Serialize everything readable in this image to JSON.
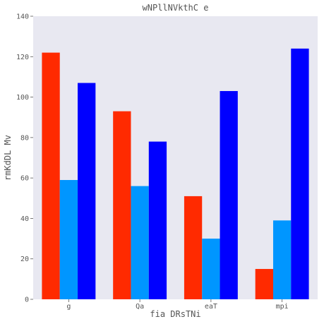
{
  "chart_data": {
    "type": "bar",
    "title": "wNPllNVkthC e",
    "xlabel": "fia DRsTNi",
    "ylabel": "rmKdDL Mv",
    "categories": [
      "g",
      "Qa",
      "eaT",
      "mpi"
    ],
    "series": [
      {
        "values": [
          122,
          93,
          51,
          15
        ],
        "color": "#ff2a00"
      },
      {
        "values": [
          59,
          56,
          30,
          39
        ],
        "color": "#0096ff"
      },
      {
        "values": [
          107,
          78,
          103,
          124
        ],
        "color": "#0000ff"
      }
    ],
    "ylim": [
      0,
      140
    ],
    "yticks": [
      0,
      20,
      40,
      60,
      80,
      100,
      120,
      140
    ],
    "grid": false,
    "legend": "none",
    "background": "#e8e8f1"
  }
}
